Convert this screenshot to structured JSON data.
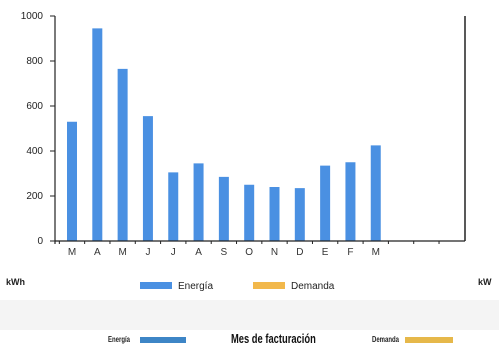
{
  "chart_data": {
    "type": "bar",
    "categories": [
      "M",
      "A",
      "M",
      "J",
      "J",
      "A",
      "S",
      "O",
      "N",
      "D",
      "E",
      "F",
      "M",
      "",
      "",
      ""
    ],
    "series": [
      {
        "name": "Energía",
        "values": [
          530,
          945,
          765,
          555,
          305,
          345,
          285,
          250,
          240,
          235,
          335,
          350,
          425,
          null,
          null,
          null
        ],
        "color": "#4a90e2"
      },
      {
        "name": "Demanda",
        "values": [
          null,
          null,
          null,
          null,
          null,
          null,
          null,
          null,
          null,
          null,
          null,
          null,
          null,
          null,
          null,
          null
        ],
        "color": "#f2b84b"
      }
    ],
    "yticks": [
      "0",
      "200",
      "400",
      "600",
      "800",
      "1000"
    ],
    "ylim": [
      0,
      1000
    ],
    "ylabel_left": "kWh",
    "ylabel_right": "kW",
    "legend_placement": "bottom",
    "grid": false
  },
  "footer": {
    "energia_label": "Energía",
    "energia_color": "#3d85c6",
    "title": "Mes de facturación",
    "demanda_label": "Demanda",
    "demanda_color": "#e6b84a"
  }
}
